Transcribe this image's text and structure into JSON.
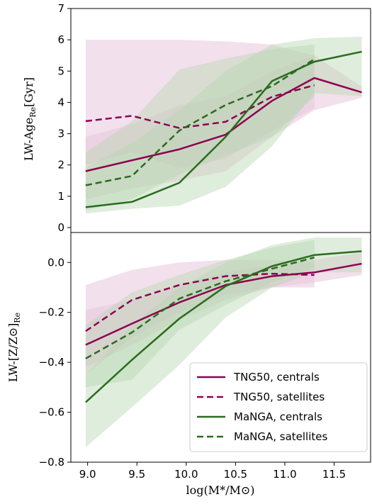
{
  "colors": {
    "tng": "#8e0152",
    "manga": "#2a6b1e",
    "tng_band": "#e7c6dc",
    "manga_band": "#b9d7b2"
  },
  "chart_data": [
    {
      "type": "line",
      "panel": "top",
      "ylabel_main": "LW-Age",
      "ylabel_sub": "Re",
      "ylabel_unit": "[Gyr]",
      "ylim": [
        0,
        7
      ],
      "yticks": [
        0,
        1,
        2,
        3,
        4,
        5,
        6,
        7
      ],
      "xlim": [
        8.83,
        11.87
      ],
      "series": [
        {
          "name": "TNG50, centrals",
          "color": "tng",
          "dash": false,
          "x": [
            8.98,
            9.45,
            9.93,
            10.4,
            10.87,
            11.3,
            11.78
          ],
          "y": [
            1.8,
            2.15,
            2.5,
            2.97,
            4.05,
            4.78,
            4.32
          ],
          "band_low": [
            0.9,
            1.25,
            1.5,
            1.8,
            2.9,
            3.75,
            4.15
          ],
          "band_high": [
            2.9,
            3.3,
            3.9,
            4.2,
            5.0,
            5.5,
            4.5
          ]
        },
        {
          "name": "TNG50, satellites",
          "color": "tng",
          "dash": true,
          "x": [
            8.98,
            9.45,
            9.93,
            10.4,
            10.87,
            11.3
          ],
          "y": [
            3.4,
            3.57,
            3.18,
            3.38,
            4.18,
            4.55
          ],
          "band_low": [
            2.0,
            2.4,
            1.9,
            2.2,
            3.1,
            3.8
          ],
          "band_high": [
            6.0,
            6.0,
            6.0,
            5.95,
            5.85,
            5.5
          ]
        },
        {
          "name": "MaNGA, centrals",
          "color": "manga",
          "dash": false,
          "x": [
            8.98,
            9.45,
            9.93,
            10.4,
            10.87,
            11.3,
            11.78
          ],
          "y": [
            0.65,
            0.82,
            1.43,
            2.9,
            4.68,
            5.3,
            5.62
          ],
          "band_low": [
            0.45,
            0.6,
            0.7,
            1.3,
            2.6,
            4.3,
            4.2
          ],
          "band_high": [
            1.9,
            2.7,
            3.75,
            5.0,
            5.85,
            6.05,
            6.1
          ]
        },
        {
          "name": "MaNGA, satellites",
          "color": "manga",
          "dash": true,
          "x": [
            8.98,
            9.45,
            9.93,
            10.4,
            10.87,
            11.3
          ],
          "y": [
            1.35,
            1.65,
            3.1,
            3.92,
            4.52,
            5.38
          ],
          "band_low": [
            0.55,
            0.9,
            1.7,
            2.3,
            2.9,
            4.2
          ],
          "band_high": [
            2.4,
            3.4,
            5.05,
            5.4,
            5.7,
            5.85
          ]
        }
      ]
    },
    {
      "type": "line",
      "panel": "bottom",
      "ylabel_main": "LW-[Z/Z⊙]",
      "ylabel_sub": "Re",
      "xlabel": "log(M*/M⊙)",
      "ylim": [
        -0.8,
        0.12
      ],
      "yticks": [
        -0.8,
        -0.6,
        -0.4,
        -0.2,
        0.0
      ],
      "ytick_labels": [
        "−0.8",
        "−0.6",
        "−0.4",
        "−0.2",
        "0.0"
      ],
      "xlim": [
        8.83,
        11.87
      ],
      "xticks": [
        9.0,
        9.5,
        10.0,
        10.5,
        11.0,
        11.5
      ],
      "xtick_labels": [
        "9.0",
        "9.5",
        "10.0",
        "10.5",
        "11.0",
        "11.5"
      ],
      "legend_position": "lower-right",
      "series": [
        {
          "name": "TNG50, centrals",
          "color": "tng",
          "dash": false,
          "x": [
            8.98,
            9.45,
            9.93,
            10.4,
            10.87,
            11.3,
            11.78
          ],
          "y": [
            -0.33,
            -0.245,
            -0.16,
            -0.09,
            -0.055,
            -0.04,
            -0.005
          ],
          "band_low": [
            -0.42,
            -0.33,
            -0.23,
            -0.15,
            -0.1,
            -0.08,
            -0.05
          ],
          "band_high": [
            -0.19,
            -0.15,
            -0.09,
            -0.04,
            -0.01,
            0.01,
            0.04
          ]
        },
        {
          "name": "TNG50, satellites",
          "color": "tng",
          "dash": true,
          "x": [
            8.98,
            9.45,
            9.93,
            10.4,
            10.87,
            11.3
          ],
          "y": [
            -0.275,
            -0.15,
            -0.09,
            -0.055,
            -0.045,
            -0.05
          ],
          "band_low": [
            -0.45,
            -0.3,
            -0.2,
            -0.13,
            -0.1,
            -0.1
          ],
          "band_high": [
            -0.09,
            -0.03,
            0.0,
            0.01,
            0.01,
            0.0
          ]
        },
        {
          "name": "MaNGA, centrals",
          "color": "manga",
          "dash": false,
          "x": [
            8.98,
            9.45,
            9.93,
            10.4,
            10.87,
            11.3,
            11.78
          ],
          "y": [
            -0.56,
            -0.39,
            -0.225,
            -0.095,
            -0.015,
            0.03,
            0.045
          ],
          "band_low": [
            -0.74,
            -0.58,
            -0.41,
            -0.22,
            -0.1,
            -0.04,
            -0.04
          ],
          "band_high": [
            -0.45,
            -0.25,
            -0.1,
            0.0,
            0.07,
            0.1,
            0.1
          ]
        },
        {
          "name": "MaNGA, satellites",
          "color": "manga",
          "dash": true,
          "x": [
            8.98,
            9.45,
            9.93,
            10.4,
            10.87,
            11.3
          ],
          "y": [
            -0.385,
            -0.28,
            -0.145,
            -0.075,
            -0.025,
            0.02
          ],
          "band_low": [
            -0.5,
            -0.47,
            -0.27,
            -0.17,
            -0.08,
            -0.02
          ],
          "band_high": [
            -0.25,
            -0.12,
            -0.05,
            0.01,
            0.06,
            0.09
          ]
        }
      ]
    }
  ]
}
